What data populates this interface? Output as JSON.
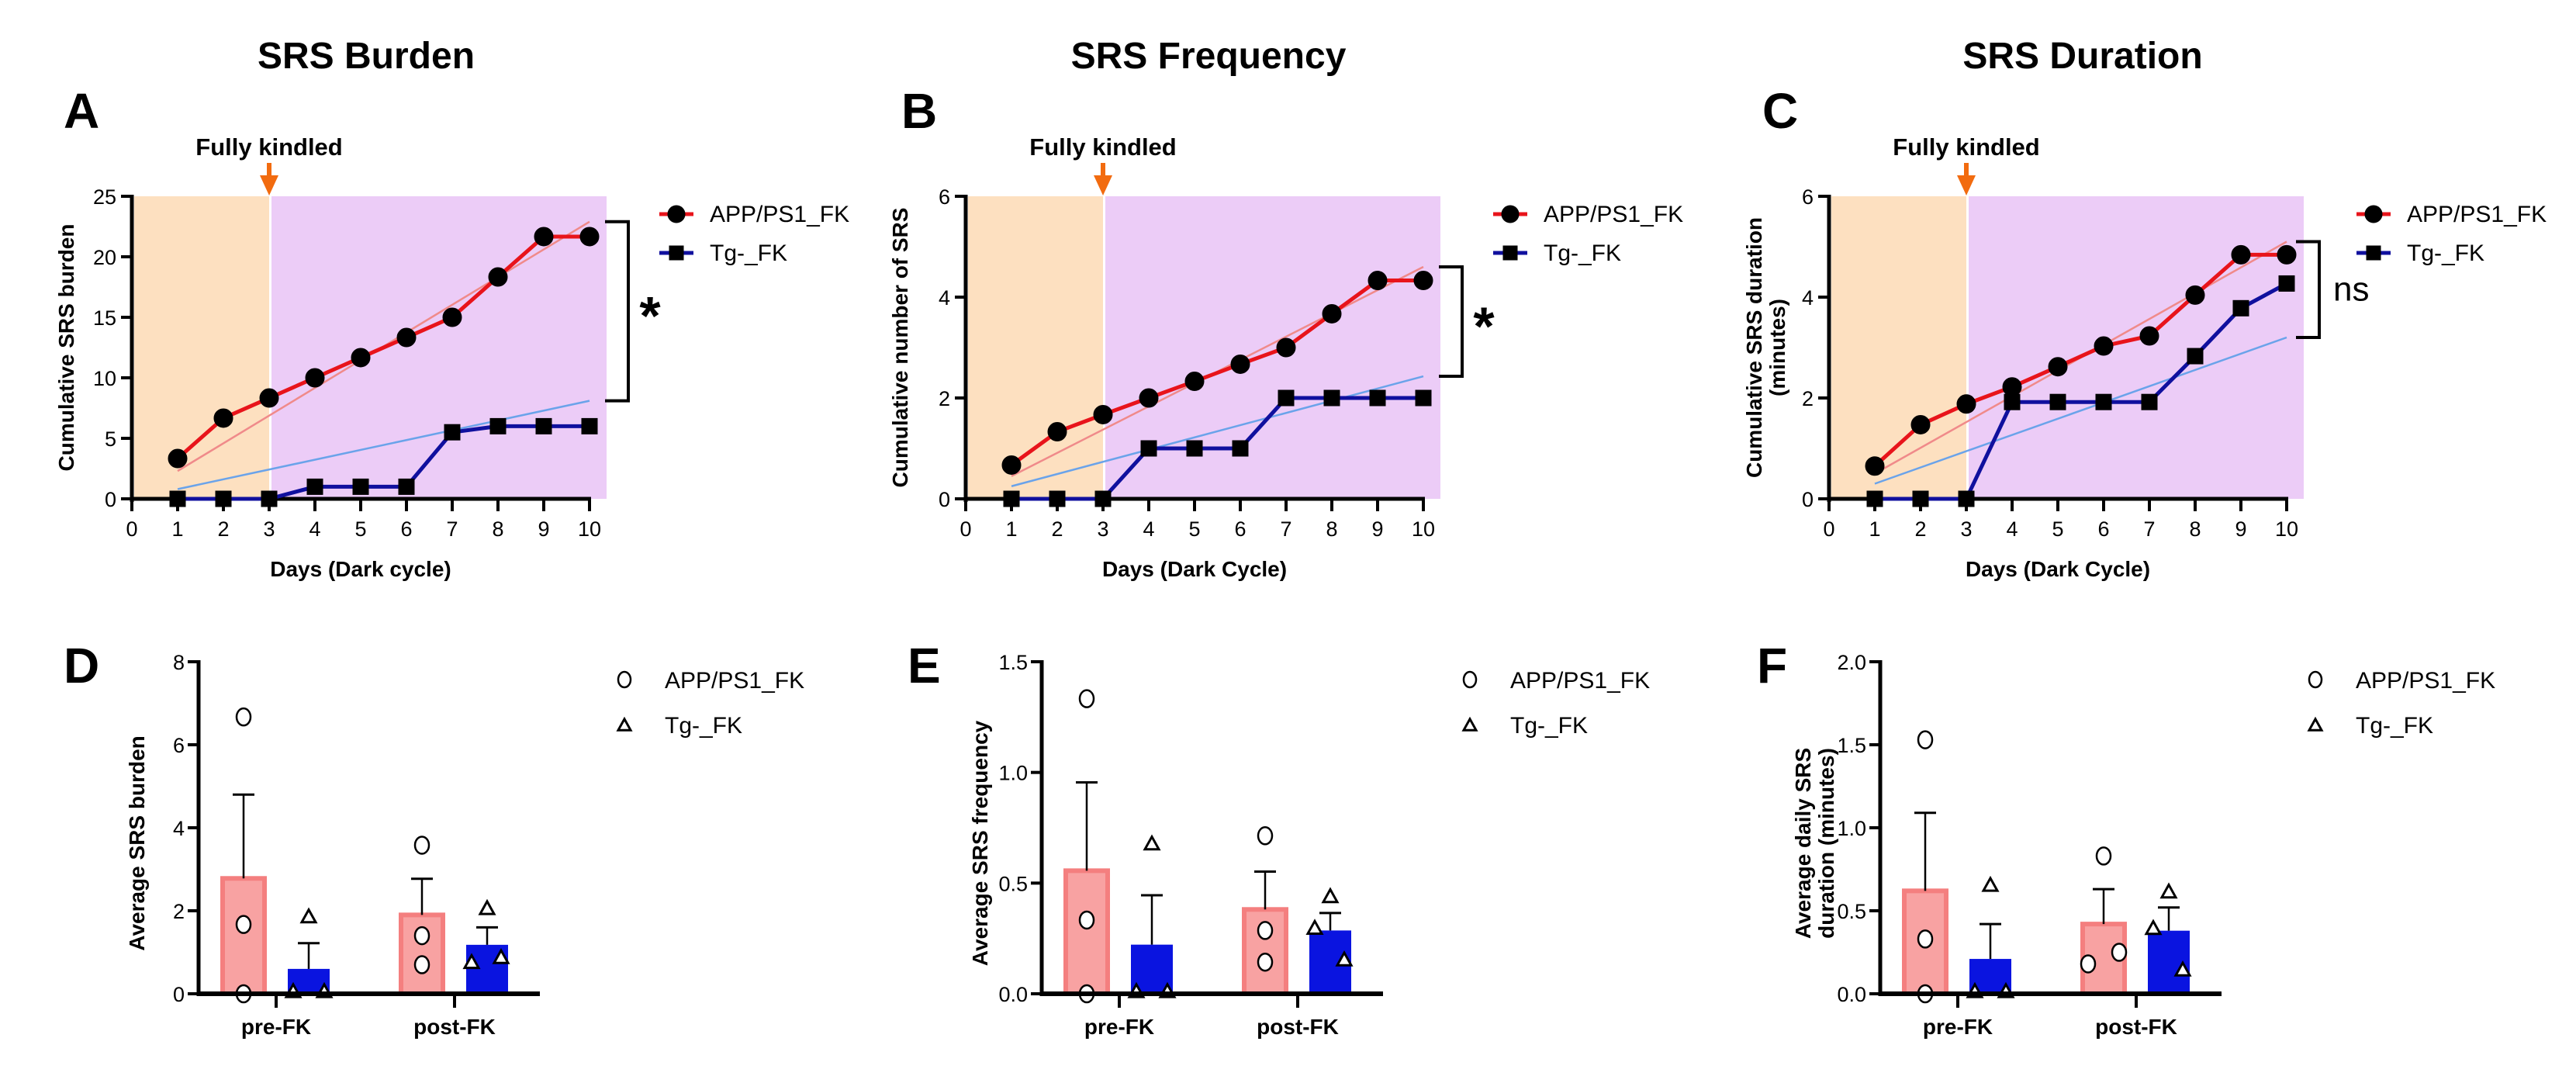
{
  "figure": {
    "column_titles": [
      "SRS Burden",
      "SRS Frequency",
      "SRS Duration"
    ]
  },
  "chart_data": [
    {
      "panel": "A",
      "type": "line",
      "title": "SRS Burden",
      "xlabel": "Days (Dark cycle)",
      "ylabel": "Cumulative SRS burden",
      "ylabel2": "",
      "xlim": [
        0,
        10
      ],
      "ylim": [
        0,
        25
      ],
      "xticks": [
        "0",
        "1",
        "2",
        "3",
        "4",
        "5",
        "6",
        "7",
        "8",
        "9",
        "10"
      ],
      "yticks": [
        0,
        5,
        10,
        15,
        20,
        25
      ],
      "ytick_labels": [
        "0",
        "5",
        "10",
        "15",
        "20",
        "25"
      ],
      "annotation": "Fully kindled",
      "annotation_x": 3,
      "shaded_regions": [
        {
          "from": 0,
          "to": 3,
          "color": "#fde0c0"
        },
        {
          "from": 3,
          "to": 10,
          "color": "#ecccf7"
        }
      ],
      "x": [
        1,
        2,
        3,
        4,
        5,
        6,
        7,
        8,
        9,
        10
      ],
      "series": [
        {
          "name": "APP/PS1_FK",
          "marker": "circle",
          "color": "#e8141b",
          "values": [
            3.33,
            6.67,
            8.33,
            10.0,
            11.67,
            13.33,
            15.0,
            18.33,
            21.67,
            21.67
          ],
          "fit": [
            2.3,
            22.9
          ],
          "fit_color": "#f08a8a"
        },
        {
          "name": "Tg-_FK",
          "marker": "square",
          "color": "#10109e",
          "values": [
            0,
            0,
            0,
            1,
            1,
            1,
            5.5,
            6,
            6,
            6
          ],
          "fit": [
            0.8,
            8.1
          ],
          "fit_color": "#6aa3ea"
        }
      ],
      "significance": "*",
      "bracket": [
        8.1,
        22.9
      ],
      "legend": "right"
    },
    {
      "panel": "B",
      "type": "line",
      "title": "SRS Frequency",
      "xlabel": "Days (Dark Cycle)",
      "ylabel": "Cumulative number of SRS",
      "ylabel2": "",
      "xlim": [
        0,
        10
      ],
      "ylim": [
        0,
        6
      ],
      "xticks": [
        "0",
        "1",
        "2",
        "3",
        "4",
        "5",
        "6",
        "7",
        "8",
        "9",
        "10"
      ],
      "yticks": [
        0,
        2,
        4,
        6
      ],
      "ytick_labels": [
        "0",
        "2",
        "4",
        "6"
      ],
      "annotation": "Fully kindled",
      "annotation_x": 3,
      "shaded_regions": [
        {
          "from": 0,
          "to": 3,
          "color": "#fde0c0"
        },
        {
          "from": 3,
          "to": 10,
          "color": "#ecccf7"
        }
      ],
      "x": [
        1,
        2,
        3,
        4,
        5,
        6,
        7,
        8,
        9,
        10
      ],
      "series": [
        {
          "name": "APP/PS1_FK",
          "marker": "circle",
          "color": "#e8141b",
          "values": [
            0.67,
            1.33,
            1.67,
            2.0,
            2.33,
            2.67,
            3.0,
            3.67,
            4.33,
            4.33
          ],
          "fit": [
            0.45,
            4.6
          ],
          "fit_color": "#f08a8a"
        },
        {
          "name": "Tg-_FK",
          "marker": "square",
          "color": "#10109e",
          "values": [
            0,
            0,
            0,
            1,
            1,
            1,
            2,
            2,
            2,
            2
          ],
          "fit": [
            0.25,
            2.43
          ],
          "fit_color": "#6aa3ea"
        }
      ],
      "significance": "*",
      "bracket": [
        2.43,
        4.6
      ],
      "legend": "right"
    },
    {
      "panel": "C",
      "type": "line",
      "title": "SRS Duration",
      "xlabel": "Days (Dark Cycle)",
      "ylabel": "Cumulative SRS duration",
      "ylabel2": "(minutes)",
      "xlim": [
        0,
        10
      ],
      "ylim": [
        0,
        6
      ],
      "xticks": [
        "0",
        "1",
        "2",
        "3",
        "4",
        "5",
        "6",
        "7",
        "8",
        "9",
        "10"
      ],
      "yticks": [
        0,
        2,
        4,
        6
      ],
      "ytick_labels": [
        "0",
        "2",
        "4",
        "6"
      ],
      "annotation": "Fully kindled",
      "annotation_x": 3,
      "shaded_regions": [
        {
          "from": 0,
          "to": 3,
          "color": "#fde0c0"
        },
        {
          "from": 3,
          "to": 10,
          "color": "#ecccf7"
        }
      ],
      "x": [
        1,
        2,
        3,
        4,
        5,
        6,
        7,
        8,
        9,
        10
      ],
      "series": [
        {
          "name": "APP/PS1_FK",
          "marker": "circle",
          "color": "#e8141b",
          "values": [
            0.65,
            1.47,
            1.88,
            2.22,
            2.62,
            3.03,
            3.23,
            4.04,
            4.84,
            4.84
          ],
          "fit": [
            0.5,
            5.1
          ],
          "fit_color": "#f08a8a"
        },
        {
          "name": "Tg-_FK",
          "marker": "square",
          "color": "#10109e",
          "values": [
            0,
            0,
            0,
            1.92,
            1.92,
            1.92,
            1.92,
            2.83,
            3.78,
            4.27
          ],
          "fit": [
            0.3,
            3.2
          ],
          "fit_color": "#6aa3ea"
        }
      ],
      "significance": "ns",
      "bracket": [
        3.2,
        5.1
      ],
      "legend": "right"
    },
    {
      "panel": "D",
      "type": "bar",
      "ylabel": "Average SRS burden",
      "ylabel2": "",
      "categories": [
        "pre-FK",
        "post-FK"
      ],
      "ylim": [
        0,
        8
      ],
      "yticks": [
        0,
        2,
        4,
        6,
        8
      ],
      "ytick_labels": [
        "0",
        "2",
        "4",
        "6",
        "8"
      ],
      "series": [
        {
          "name": "APP/PS1_FK",
          "marker": "circle",
          "color": "#f8a2a2",
          "edge": "#f47f7f",
          "values": [
            2.78,
            1.9
          ],
          "err_top": [
            4.8,
            2.77
          ],
          "points": [
            [
              6.67,
              1.67,
              0
            ],
            [
              3.58,
              1.4,
              0.7
            ]
          ]
        },
        {
          "name": "Tg-_FK",
          "marker": "triangle",
          "color": "#0a14e0",
          "edge": "#0a14e0",
          "values": [
            0.6,
            1.18
          ],
          "err_top": [
            1.22,
            1.6
          ],
          "points": [
            [
              1.8,
              0,
              0
            ],
            [
              2.0,
              0.7,
              0.82
            ]
          ]
        }
      ],
      "legend": "right"
    },
    {
      "panel": "E",
      "type": "bar",
      "ylabel": "Average SRS frequency",
      "ylabel2": "",
      "categories": [
        "pre-FK",
        "post-FK"
      ],
      "ylim": [
        0,
        1.5
      ],
      "yticks": [
        0,
        0.5,
        1.0,
        1.5
      ],
      "ytick_labels": [
        "0.0",
        "0.5",
        "1.0",
        "1.5"
      ],
      "series": [
        {
          "name": "APP/PS1_FK",
          "marker": "circle",
          "color": "#f8a2a2",
          "edge": "#f47f7f",
          "values": [
            0.556,
            0.381
          ],
          "err_top": [
            0.955,
            0.552
          ],
          "points": [
            [
              1.333,
              0.333,
              0
            ],
            [
              0.714,
              0.286,
              0.143
            ]
          ]
        },
        {
          "name": "Tg-_FK",
          "marker": "triangle",
          "color": "#0a14e0",
          "edge": "#0a14e0",
          "values": [
            0.222,
            0.286
          ],
          "err_top": [
            0.445,
            0.365
          ],
          "points": [
            [
              0.667,
              0,
              0
            ],
            [
              0.429,
              0.286,
              0.143
            ]
          ]
        }
      ],
      "legend": "right"
    },
    {
      "panel": "F",
      "type": "bar",
      "ylabel": "Average daily SRS",
      "ylabel2": "duration (minutes)",
      "categories": [
        "pre-FK",
        "post-FK"
      ],
      "ylim": [
        0,
        2.0
      ],
      "yticks": [
        0,
        0.5,
        1.0,
        1.5,
        2.0
      ],
      "ytick_labels": [
        "0.0",
        "0.5",
        "1.0",
        "1.5",
        "2.0"
      ],
      "series": [
        {
          "name": "APP/PS1_FK",
          "marker": "circle",
          "color": "#f8a2a2",
          "edge": "#f47f7f",
          "values": [
            0.62,
            0.42
          ],
          "err_top": [
            1.09,
            0.63
          ],
          "points": [
            [
              1.53,
              0.33,
              0
            ],
            [
              0.83,
              0.18,
              0.25
            ]
          ]
        },
        {
          "name": "Tg-_FK",
          "marker": "triangle",
          "color": "#0a14e0",
          "edge": "#0a14e0",
          "values": [
            0.21,
            0.38
          ],
          "err_top": [
            0.42,
            0.52
          ],
          "points": [
            [
              0.64,
              0,
              0
            ],
            [
              0.6,
              0.38,
              0.13
            ]
          ]
        }
      ],
      "legend": "right"
    }
  ]
}
